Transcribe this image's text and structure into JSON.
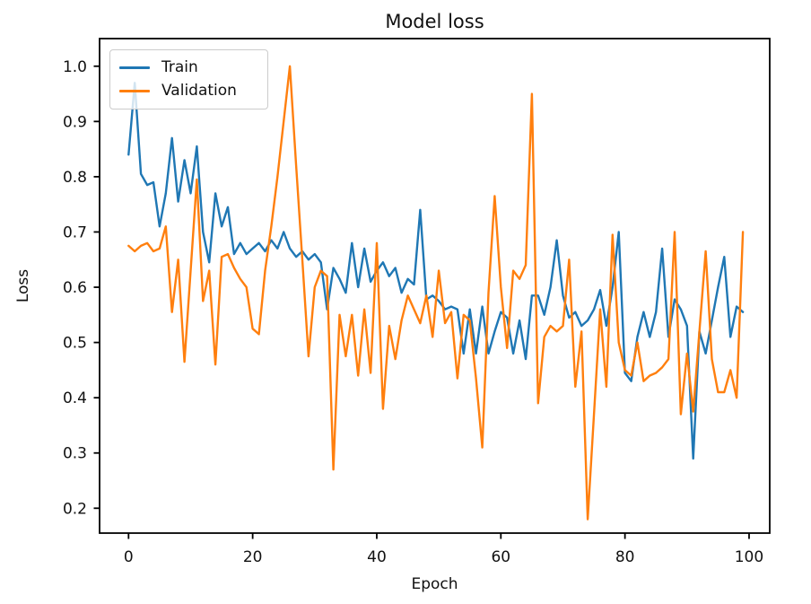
{
  "figure": {
    "title": "Model loss",
    "xlabel": "Epoch",
    "ylabel": "Loss"
  },
  "legend": {
    "position": "upper left",
    "entries": [
      {
        "label": "Train",
        "color": "#1f77b4"
      },
      {
        "label": "Validation",
        "color": "#ff7f0e"
      }
    ]
  },
  "chart_data": {
    "type": "line",
    "title": "Model loss",
    "xlabel": "Epoch",
    "ylabel": "Loss",
    "grid": false,
    "legend_position": "upper left",
    "xlim": [
      -4.67,
      103.33
    ],
    "ylim": [
      0.155,
      1.05
    ],
    "xticks": [
      0,
      20,
      40,
      60,
      80,
      100
    ],
    "xtick_labels": [
      "0",
      "20",
      "40",
      "60",
      "80",
      "100"
    ],
    "yticks": [
      0.2,
      0.3,
      0.4,
      0.5,
      0.6,
      0.7,
      0.8,
      0.9,
      1.0
    ],
    "ytick_labels": [
      "0.2",
      "0.3",
      "0.4",
      "0.5",
      "0.6",
      "0.7",
      "0.8",
      "0.9",
      "1.0"
    ],
    "x": [
      0,
      1,
      2,
      3,
      4,
      5,
      6,
      7,
      8,
      9,
      10,
      11,
      12,
      13,
      14,
      15,
      16,
      17,
      18,
      19,
      20,
      21,
      22,
      23,
      24,
      25,
      26,
      27,
      28,
      29,
      30,
      31,
      32,
      33,
      34,
      35,
      36,
      37,
      38,
      39,
      40,
      41,
      42,
      43,
      44,
      45,
      46,
      47,
      48,
      49,
      50,
      51,
      52,
      53,
      54,
      55,
      56,
      57,
      58,
      59,
      60,
      61,
      62,
      63,
      64,
      65,
      66,
      67,
      68,
      69,
      70,
      71,
      72,
      73,
      74,
      75,
      76,
      77,
      78,
      79,
      80,
      81,
      82,
      83,
      84,
      85,
      86,
      87,
      88,
      89,
      90,
      91,
      92,
      93,
      94,
      95,
      96,
      97,
      98,
      99
    ],
    "series": [
      {
        "name": "Train",
        "color": "#1f77b4",
        "values": [
          0.84,
          0.97,
          0.805,
          0.785,
          0.79,
          0.71,
          0.77,
          0.87,
          0.755,
          0.83,
          0.77,
          0.855,
          0.7,
          0.645,
          0.77,
          0.71,
          0.745,
          0.66,
          0.68,
          0.66,
          0.67,
          0.68,
          0.665,
          0.685,
          0.67,
          0.7,
          0.67,
          0.655,
          0.665,
          0.65,
          0.66,
          0.645,
          0.56,
          0.635,
          0.615,
          0.59,
          0.68,
          0.6,
          0.67,
          0.61,
          0.63,
          0.645,
          0.62,
          0.635,
          0.59,
          0.615,
          0.605,
          0.74,
          0.578,
          0.585,
          0.575,
          0.56,
          0.565,
          0.56,
          0.48,
          0.56,
          0.48,
          0.565,
          0.48,
          0.52,
          0.555,
          0.545,
          0.48,
          0.54,
          0.47,
          0.585,
          0.585,
          0.55,
          0.6,
          0.685,
          0.585,
          0.545,
          0.555,
          0.53,
          0.54,
          0.56,
          0.595,
          0.53,
          0.6,
          0.7,
          0.445,
          0.43,
          0.51,
          0.555,
          0.51,
          0.555,
          0.67,
          0.51,
          0.578,
          0.56,
          0.53,
          0.29,
          0.52,
          0.48,
          0.54,
          0.6,
          0.655,
          0.51,
          0.565,
          0.555
        ]
      },
      {
        "name": "Validation",
        "color": "#ff7f0e",
        "values": [
          0.675,
          0.665,
          0.675,
          0.68,
          0.665,
          0.67,
          0.71,
          0.555,
          0.65,
          0.465,
          0.63,
          0.795,
          0.575,
          0.63,
          0.46,
          0.655,
          0.66,
          0.635,
          0.615,
          0.6,
          0.525,
          0.515,
          0.63,
          0.71,
          0.8,
          0.9,
          1.0,
          0.82,
          0.65,
          0.475,
          0.6,
          0.63,
          0.62,
          0.27,
          0.55,
          0.475,
          0.55,
          0.44,
          0.56,
          0.445,
          0.68,
          0.38,
          0.53,
          0.47,
          0.54,
          0.585,
          0.56,
          0.535,
          0.585,
          0.51,
          0.63,
          0.535,
          0.555,
          0.435,
          0.55,
          0.54,
          0.435,
          0.31,
          0.59,
          0.765,
          0.6,
          0.49,
          0.63,
          0.615,
          0.64,
          0.95,
          0.39,
          0.51,
          0.53,
          0.52,
          0.53,
          0.65,
          0.42,
          0.52,
          0.18,
          0.37,
          0.56,
          0.42,
          0.695,
          0.5,
          0.45,
          0.44,
          0.5,
          0.43,
          0.44,
          0.445,
          0.455,
          0.47,
          0.7,
          0.37,
          0.48,
          0.375,
          0.52,
          0.665,
          0.47,
          0.41,
          0.41,
          0.45,
          0.4,
          0.7
        ]
      }
    ]
  }
}
